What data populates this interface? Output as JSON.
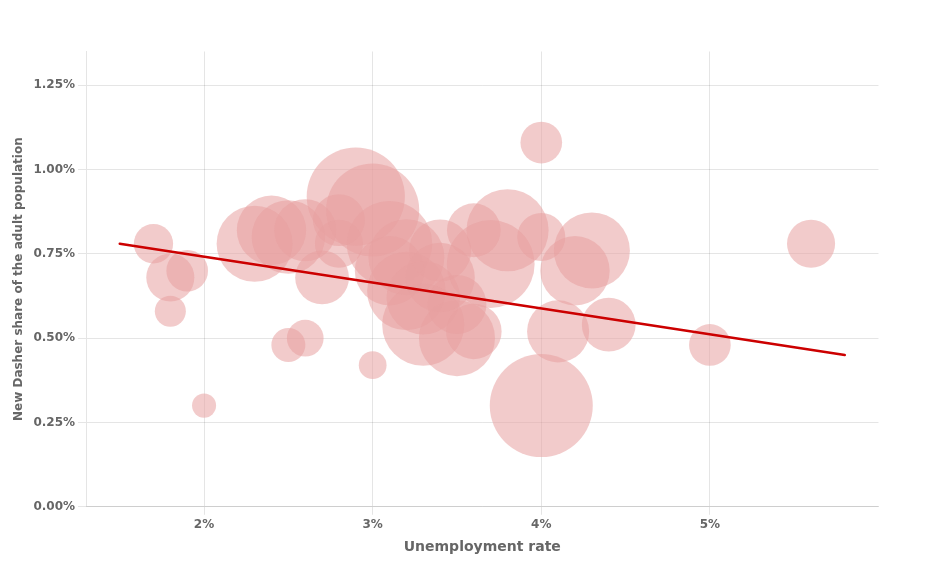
{
  "chart_data": {
    "type": "bubble",
    "xlabel": "Unemployment rate",
    "ylabel": "New Dasher share of the adult population",
    "grid": true,
    "xlim": [
      0.013,
      0.06
    ],
    "ylim": [
      0.0,
      0.0135
    ],
    "xticks": [
      {
        "value": 0.02,
        "label": "2%"
      },
      {
        "value": 0.03,
        "label": "3%"
      },
      {
        "value": 0.04,
        "label": "4%"
      },
      {
        "value": 0.05,
        "label": "5%"
      }
    ],
    "yticks": [
      {
        "value": 0.0,
        "label": "0.00%"
      },
      {
        "value": 0.0025,
        "label": "0.25%"
      },
      {
        "value": 0.005,
        "label": "0.50%"
      },
      {
        "value": 0.0075,
        "label": "0.75%"
      },
      {
        "value": 0.01,
        "label": "1.00%"
      },
      {
        "value": 0.0125,
        "label": "1.25%"
      }
    ],
    "series": [
      {
        "type": "bubble",
        "color": "#e8a0a0",
        "x": [
          0.017,
          0.018,
          0.019,
          0.018,
          0.02,
          0.023,
          0.025,
          0.024,
          0.025,
          0.026,
          0.026,
          0.027,
          0.028,
          0.028,
          0.029,
          0.03,
          0.03,
          0.031,
          0.031,
          0.032,
          0.032,
          0.033,
          0.033,
          0.034,
          0.034,
          0.035,
          0.035,
          0.036,
          0.036,
          0.037,
          0.038,
          0.04,
          0.04,
          0.04,
          0.041,
          0.042,
          0.043,
          0.044,
          0.05,
          0.056
        ],
        "values": [
          0.0078,
          0.0068,
          0.007,
          0.0058,
          0.003,
          0.0078,
          0.008,
          0.0082,
          0.0048,
          0.005,
          0.0082,
          0.0068,
          0.0085,
          0.0078,
          0.0092,
          0.0088,
          0.0042,
          0.0078,
          0.007,
          0.0074,
          0.0064,
          0.0062,
          0.0054,
          0.0076,
          0.0068,
          0.006,
          0.005,
          0.0082,
          0.0052,
          0.0072,
          0.0082,
          0.0108,
          0.008,
          0.003,
          0.0052,
          0.007,
          0.0076,
          0.0054,
          0.0048,
          0.0078
        ],
        "size": [
          800,
          1200,
          900,
          500,
          300,
          3000,
          2800,
          2500,
          600,
          700,
          2000,
          1500,
          1400,
          1200,
          5000,
          4500,
          400,
          3800,
          2500,
          3000,
          3200,
          2800,
          3500,
          2000,
          2500,
          1800,
          3000,
          1500,
          1600,
          4000,
          3500,
          900,
          1200,
          5500,
          2000,
          2500,
          3000,
          1500,
          900,
          1200
        ]
      },
      {
        "type": "line",
        "color": "#cc0000",
        "x": [
          0.015,
          0.058
        ],
        "values": [
          0.0078,
          0.0045
        ]
      }
    ]
  }
}
